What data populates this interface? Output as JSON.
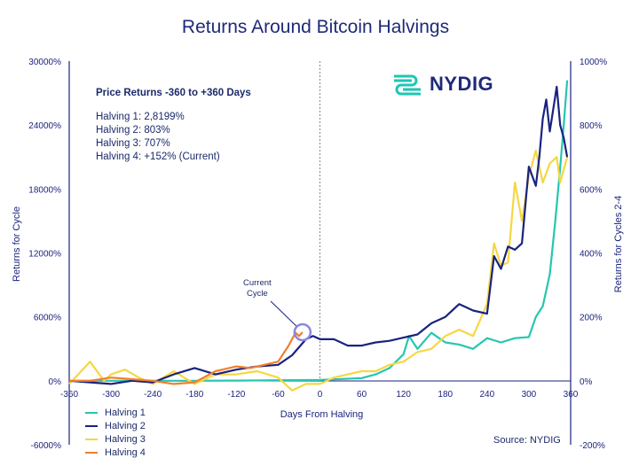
{
  "chart_data": {
    "type": "line",
    "title": "Returns Around Bitcoin Halvings",
    "xlabel": "Days From Halving",
    "ylabel_left": "Returns for Cycle",
    "ylabel_right": "Returns for Cycles 2-4",
    "xlim": [
      -360,
      360
    ],
    "x_ticks": [
      "-360",
      "-300",
      "-240",
      "-180",
      "-120",
      "-60",
      "0",
      "60",
      "120",
      "180",
      "240",
      "300",
      "360"
    ],
    "ylim_left": [
      -6000,
      30000
    ],
    "y_ticks_left": [
      "-6000%",
      "0%",
      "6000%",
      "12000%",
      "18000%",
      "24000%",
      "30000%"
    ],
    "ylim_right": [
      -200,
      1000
    ],
    "y_ticks_right": [
      "-200%",
      "0%",
      "200%",
      "400%",
      "600%",
      "800%",
      "1000%"
    ],
    "vertical_marker_x": 0,
    "legend_position": "bottom-left",
    "series": [
      {
        "name": "Halving 1",
        "axis": "left",
        "color": "#26c6b0",
        "points": [
          [
            -360,
            0
          ],
          [
            -300,
            0
          ],
          [
            -240,
            0
          ],
          [
            -180,
            0
          ],
          [
            -120,
            20
          ],
          [
            -60,
            50
          ],
          [
            0,
            80
          ],
          [
            60,
            250
          ],
          [
            80,
            600
          ],
          [
            100,
            1200
          ],
          [
            120,
            2500
          ],
          [
            128,
            4200
          ],
          [
            140,
            3000
          ],
          [
            160,
            4500
          ],
          [
            180,
            3600
          ],
          [
            200,
            3400
          ],
          [
            220,
            3000
          ],
          [
            240,
            4000
          ],
          [
            260,
            3600
          ],
          [
            280,
            4000
          ],
          [
            300,
            4100
          ],
          [
            310,
            6000
          ],
          [
            320,
            7000
          ],
          [
            330,
            10000
          ],
          [
            338,
            15000
          ],
          [
            345,
            20000
          ],
          [
            350,
            24000
          ],
          [
            355,
            28200
          ]
        ]
      },
      {
        "name": "Halving 2",
        "axis": "right",
        "color": "#1a237e",
        "points": [
          [
            -360,
            0
          ],
          [
            -330,
            -5
          ],
          [
            -300,
            -10
          ],
          [
            -270,
            0
          ],
          [
            -240,
            -5
          ],
          [
            -210,
            20
          ],
          [
            -180,
            40
          ],
          [
            -150,
            20
          ],
          [
            -120,
            35
          ],
          [
            -90,
            45
          ],
          [
            -60,
            50
          ],
          [
            -40,
            80
          ],
          [
            -20,
            130
          ],
          [
            -10,
            140
          ],
          [
            0,
            130
          ],
          [
            20,
            130
          ],
          [
            40,
            110
          ],
          [
            60,
            110
          ],
          [
            80,
            120
          ],
          [
            100,
            125
          ],
          [
            120,
            135
          ],
          [
            140,
            145
          ],
          [
            160,
            180
          ],
          [
            180,
            200
          ],
          [
            200,
            240
          ],
          [
            220,
            220
          ],
          [
            240,
            210
          ],
          [
            250,
            390
          ],
          [
            260,
            350
          ],
          [
            270,
            420
          ],
          [
            280,
            410
          ],
          [
            290,
            430
          ],
          [
            300,
            670
          ],
          [
            310,
            610
          ],
          [
            315,
            700
          ],
          [
            320,
            820
          ],
          [
            325,
            880
          ],
          [
            330,
            780
          ],
          [
            340,
            920
          ],
          [
            345,
            800
          ],
          [
            350,
            760
          ],
          [
            355,
            700
          ]
        ]
      },
      {
        "name": "Halving 3",
        "axis": "right",
        "color": "#f5d743",
        "points": [
          [
            -360,
            -10
          ],
          [
            -330,
            60
          ],
          [
            -310,
            0
          ],
          [
            -300,
            20
          ],
          [
            -280,
            35
          ],
          [
            -260,
            10
          ],
          [
            -240,
            -10
          ],
          [
            -210,
            30
          ],
          [
            -180,
            -10
          ],
          [
            -150,
            20
          ],
          [
            -120,
            20
          ],
          [
            -90,
            30
          ],
          [
            -60,
            10
          ],
          [
            -40,
            -30
          ],
          [
            -20,
            -10
          ],
          [
            0,
            -10
          ],
          [
            20,
            10
          ],
          [
            40,
            20
          ],
          [
            60,
            30
          ],
          [
            80,
            30
          ],
          [
            100,
            50
          ],
          [
            120,
            60
          ],
          [
            140,
            90
          ],
          [
            160,
            100
          ],
          [
            180,
            140
          ],
          [
            200,
            160
          ],
          [
            220,
            140
          ],
          [
            240,
            240
          ],
          [
            250,
            430
          ],
          [
            260,
            360
          ],
          [
            270,
            370
          ],
          [
            280,
            620
          ],
          [
            290,
            500
          ],
          [
            300,
            640
          ],
          [
            310,
            720
          ],
          [
            320,
            620
          ],
          [
            330,
            680
          ],
          [
            340,
            700
          ],
          [
            345,
            620
          ],
          [
            350,
            660
          ],
          [
            355,
            700
          ]
        ]
      },
      {
        "name": "Halving 4",
        "axis": "right",
        "color": "#f07f2e",
        "points": [
          [
            -360,
            0
          ],
          [
            -330,
            0
          ],
          [
            -300,
            10
          ],
          [
            -270,
            5
          ],
          [
            -240,
            0
          ],
          [
            -210,
            -10
          ],
          [
            -180,
            -5
          ],
          [
            -150,
            30
          ],
          [
            -120,
            45
          ],
          [
            -100,
            40
          ],
          [
            -80,
            50
          ],
          [
            -60,
            60
          ],
          [
            -45,
            110
          ],
          [
            -35,
            150
          ],
          [
            -30,
            140
          ],
          [
            -25,
            152
          ]
        ]
      }
    ],
    "annotations": {
      "stats_title": "Price Returns -360 to +360 Days",
      "stats": [
        "Halving 1: 2,8199%",
        "Halving 2: 803%",
        "Halving 3: 707%",
        "Halving 4: +152% (Current)"
      ],
      "callout": [
        "Current",
        "Cycle"
      ]
    }
  },
  "source": "Source: NYDIG",
  "logo": {
    "name": "NYDIG",
    "icon": "nydig-logo-icon",
    "color": "#1ec6b4"
  },
  "colors": {
    "axis": "#1a237e",
    "marker": "#888888",
    "circle": "#8b86e0"
  }
}
